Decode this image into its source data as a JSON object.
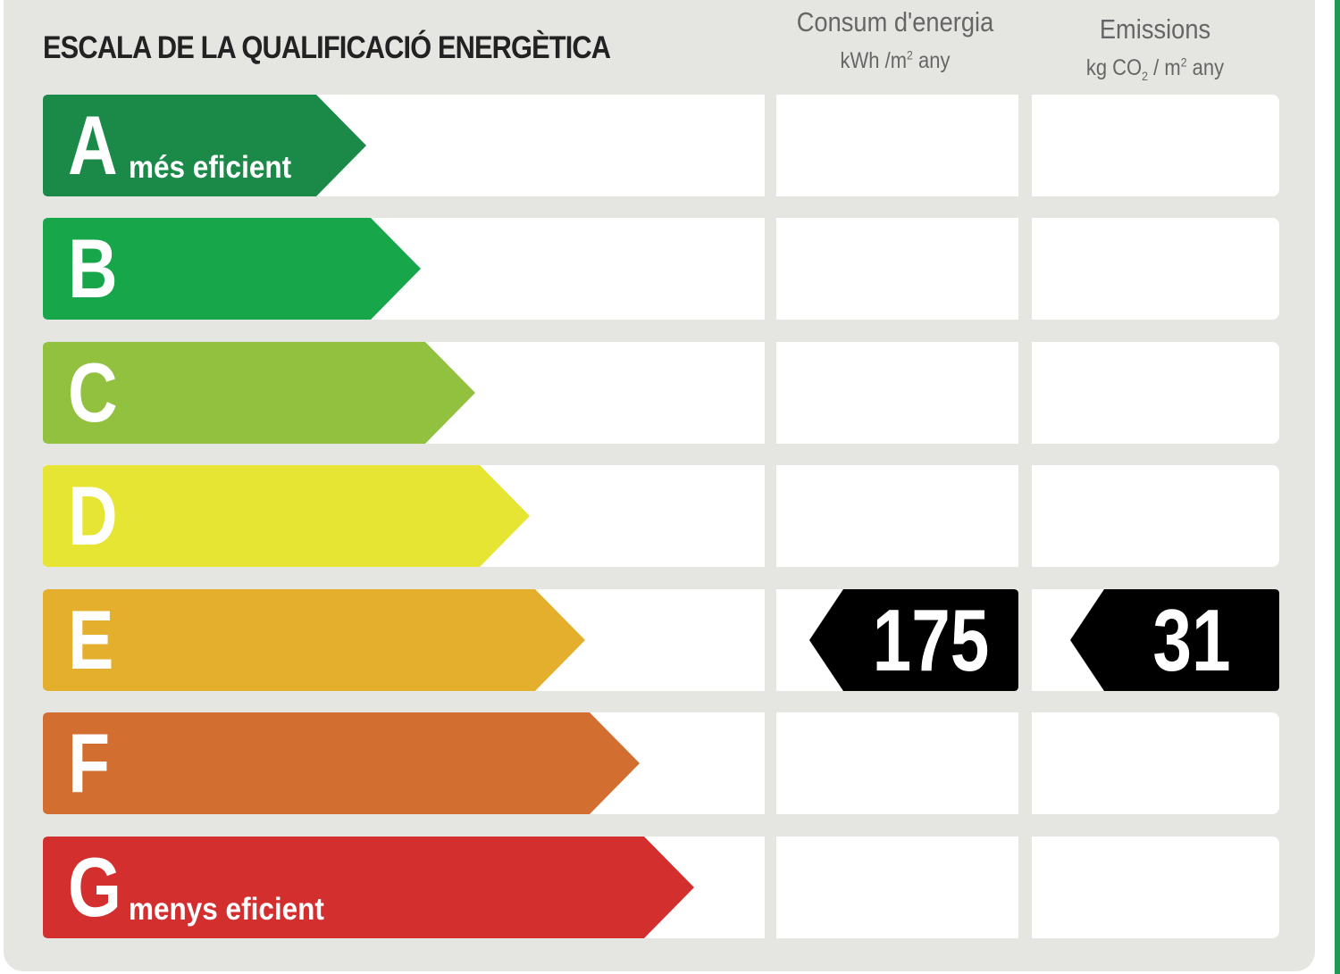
{
  "header": {
    "title": "ESCALA DE LA QUALIFICACIÓ ENERGÈTICA",
    "energy_title": "Consum d'energia",
    "energy_unit": "kWh /m",
    "energy_unit_sup": "2",
    "energy_unit_suffix": " any",
    "emission_title": "Emissions",
    "emission_unit": "kg CO",
    "emission_unit_sub": "2",
    "emission_unit_mid": " / m",
    "emission_unit_sup": "2",
    "emission_unit_suffix": " any"
  },
  "ratings": [
    {
      "letter": "A",
      "caption": "més eficient",
      "color": "#1b8a49"
    },
    {
      "letter": "B",
      "caption": "",
      "color": "#18a64b"
    },
    {
      "letter": "C",
      "caption": "",
      "color": "#92c03f"
    },
    {
      "letter": "D",
      "caption": "",
      "color": "#e6e534"
    },
    {
      "letter": "E",
      "caption": "",
      "color": "#e4af2c"
    },
    {
      "letter": "F",
      "caption": "",
      "color": "#d26e2f"
    },
    {
      "letter": "G",
      "caption": "menys eficient",
      "color": "#d32f2f"
    }
  ],
  "result": {
    "rating": "E",
    "energy_value": "175",
    "emission_value": "31",
    "badge_color": "#000000"
  }
}
